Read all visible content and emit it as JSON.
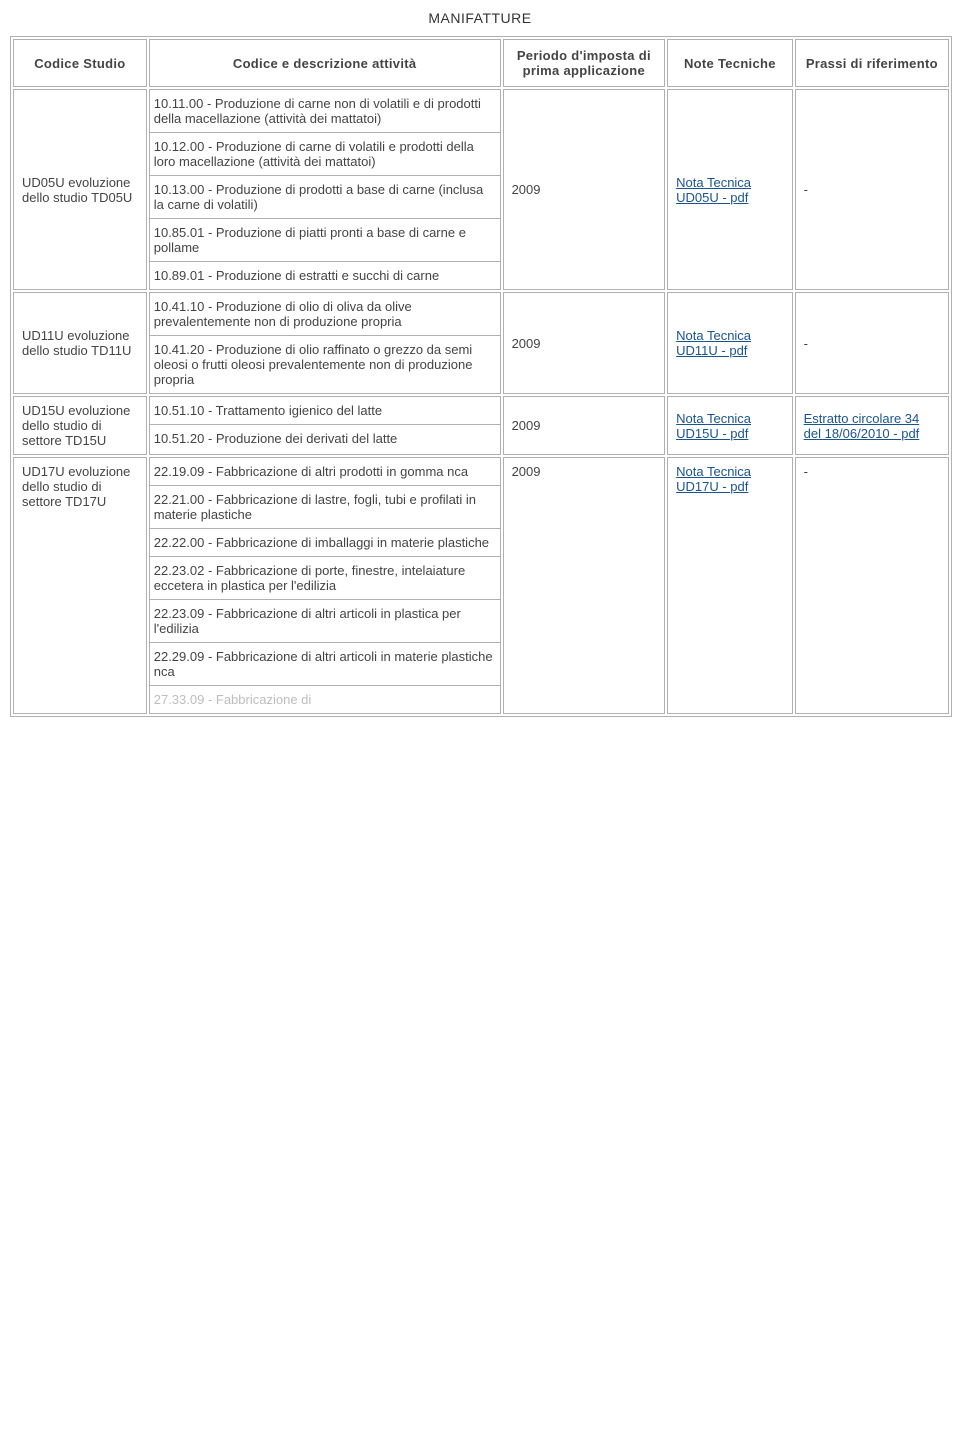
{
  "title": "MANIFATTURE",
  "headers": {
    "codice_studio": "Codice Studio",
    "codice_desc": "Codice e descrizione attività",
    "periodo": "Periodo d'imposta di prima applicazione",
    "note": "Note Tecniche",
    "prassi": "Prassi di riferimento"
  },
  "rows": [
    {
      "codice_studio": "UD05U evoluzione dello studio TD05U",
      "activities": [
        "10.11.00 - Produzione di carne non di volatili e di prodotti della macellazione (attività dei mattatoi)",
        "10.12.00 - Produzione di carne di volatili e prodotti della loro macellazione (attività dei mattatoi)",
        "10.13.00 - Produzione di prodotti a base di carne (inclusa la carne di volatili)",
        "10.85.01 - Produzione di piatti pronti a base di carne e pollame",
        "10.89.01 - Produzione di estratti e succhi di carne"
      ],
      "periodo": "2009",
      "nota_label": "Nota Tecnica UD05U - pdf",
      "prassi": "-"
    },
    {
      "codice_studio": "UD11U evoluzione dello studio TD11U",
      "activities": [
        "10.41.10 - Produzione di olio di oliva da olive prevalentemente non di produzione propria",
        "10.41.20 - Produzione di olio raffinato o grezzo da semi oleosi o frutti oleosi prevalentemente non di produzione propria"
      ],
      "periodo": "2009",
      "nota_label": "Nota Tecnica UD11U - pdf",
      "prassi": "-"
    },
    {
      "codice_studio": "UD15U evoluzione dello studio di settore TD15U",
      "activities": [
        "10.51.10 - Trattamento igienico del latte",
        "10.51.20 - Produzione dei derivati del latte"
      ],
      "periodo": "2009",
      "nota_label": "Nota Tecnica UD15U - pdf",
      "prassi_link": "Estratto circolare 34 del 18/06/2010 - pdf"
    },
    {
      "codice_studio": "UD17U evoluzione dello studio di settore TD17U",
      "activities": [
        "22.19.09 - Fabbricazione di altri prodotti in gomma nca",
        "22.21.00 - Fabbricazione di lastre, fogli, tubi e profilati in materie plastiche",
        "22.22.00 - Fabbricazione di imballaggi in materie plastiche",
        "22.23.02 - Fabbricazione di porte, finestre, intelaiature eccetera in plastica per l'edilizia",
        "22.23.09 - Fabbricazione di altri articoli in plastica per l'edilizia",
        "22.29.09 - Fabbricazione di altri articoli in materie plastiche nca",
        "27.33.09 - Fabbricazione di"
      ],
      "periodo": "2009",
      "nota_label": "Nota Tecnica UD17U - pdf",
      "prassi": "-"
    }
  ]
}
